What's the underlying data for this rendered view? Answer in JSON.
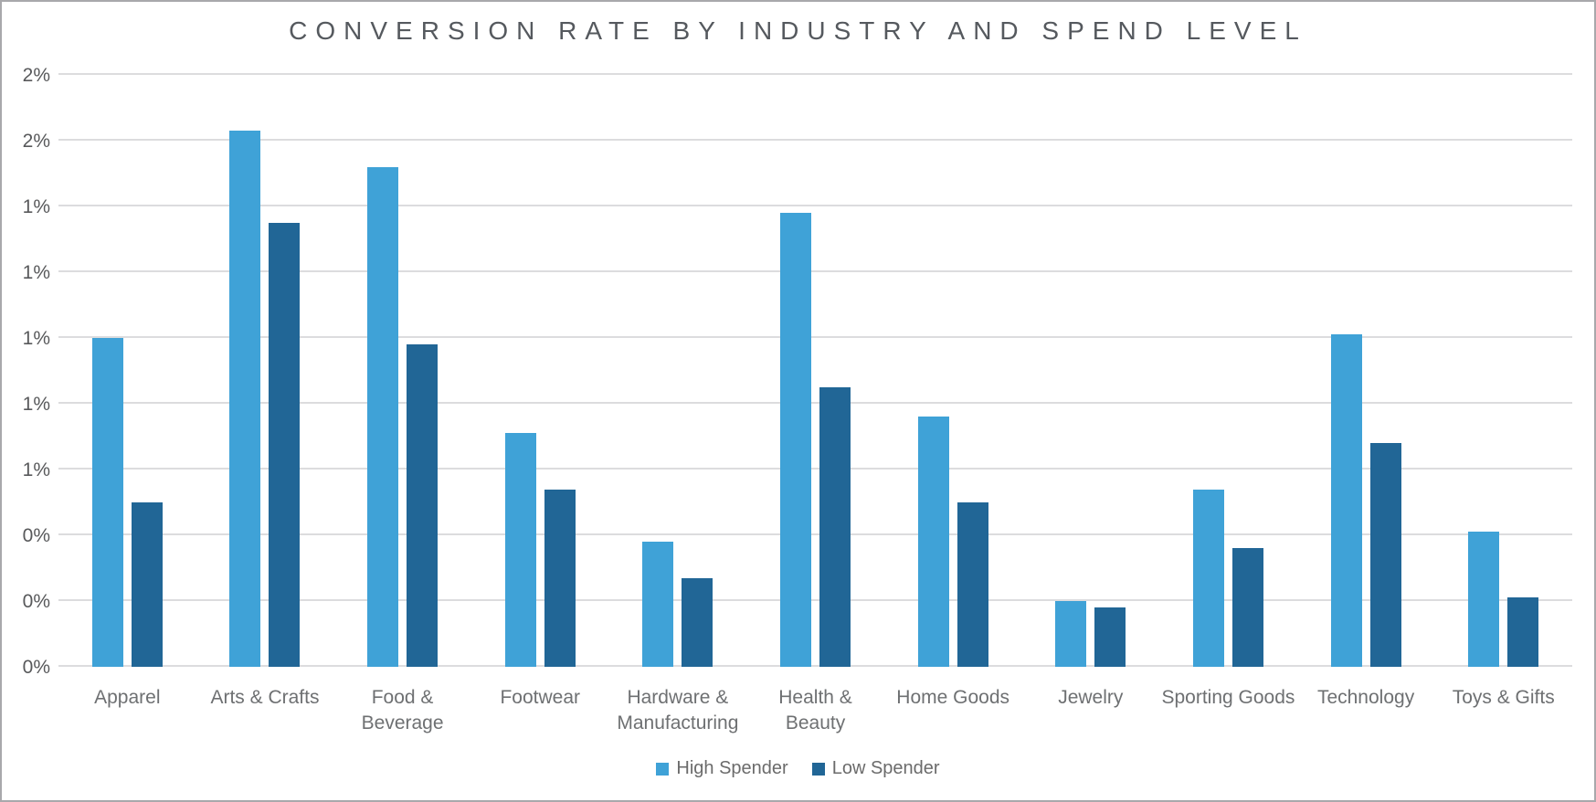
{
  "chart_data": {
    "type": "bar",
    "title": "CONVERSION RATE BY INDUSTRY AND SPEND LEVEL",
    "categories": [
      "Apparel",
      "Arts & Crafts",
      "Food & Beverage",
      "Footwear",
      "Hardware & Manufacturing",
      "Health & Beauty",
      "Home Goods",
      "Jewelry",
      "Sporting Goods",
      "Technology",
      "Toys & Gifts"
    ],
    "category_display_labels": [
      "Apparel",
      "Arts & Crafts",
      "Food &\nBeverage",
      "Footwear",
      "Hardware &\nManufacturing",
      "Health & Beauty",
      "Home Goods",
      "Jewelry",
      "Sporting Goods",
      "Technology",
      "Toys & Gifts"
    ],
    "series": [
      {
        "name": "High Spender",
        "color": "#3FA2D7",
        "values": [
          1.0,
          1.63,
          1.52,
          0.71,
          0.38,
          1.38,
          0.76,
          0.2,
          0.54,
          1.01,
          0.41
        ]
      },
      {
        "name": "Low Spender",
        "color": "#216696",
        "values": [
          0.5,
          1.35,
          0.98,
          0.54,
          0.27,
          0.85,
          0.5,
          0.18,
          0.36,
          0.68,
          0.21
        ]
      }
    ],
    "unit": "%",
    "ylim": [
      0,
      1.8
    ],
    "ytick_interval": 0.2,
    "yticks": [
      {
        "value": 0.0,
        "label": "0%"
      },
      {
        "value": 0.2,
        "label": "0%"
      },
      {
        "value": 0.4,
        "label": "0%"
      },
      {
        "value": 0.6,
        "label": "1%"
      },
      {
        "value": 0.8,
        "label": "1%"
      },
      {
        "value": 1.0,
        "label": "1%"
      },
      {
        "value": 1.2,
        "label": "1%"
      },
      {
        "value": 1.4,
        "label": "1%"
      },
      {
        "value": 1.6,
        "label": "2%"
      },
      {
        "value": 1.8,
        "label": "2%"
      }
    ],
    "grid": true,
    "legend_position": "bottom",
    "xlabel": "",
    "ylabel": ""
  },
  "colors": {
    "background": "#FFFFFF",
    "border": "#A8A8AB",
    "gridline": "#DCDCDE",
    "title_text": "#55595E",
    "axis_text": "#58595B",
    "category_text": "#6E7072",
    "legend_text": "#6B6B6B"
  }
}
